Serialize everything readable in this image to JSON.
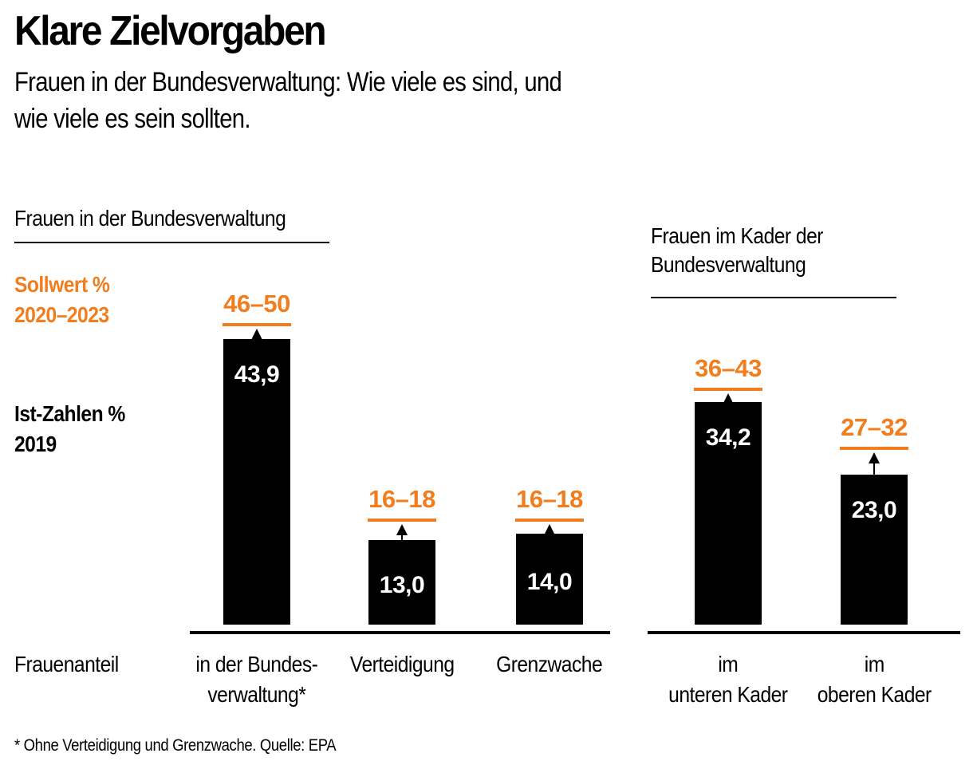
{
  "title": "Klare Zielvorgaben",
  "subtitle": "Frauen in der Bundesverwaltung: Wie viele es sind, und wie viele es sein sollten.",
  "legend": {
    "target": [
      "Sollwert %",
      "2020–2023"
    ],
    "actual": [
      "Ist-Zahlen %",
      "2019"
    ]
  },
  "x_axis_label": "Frauenanteil",
  "footnote": "* Ohne Verteidigung und Grenzwache. Quelle: EPA",
  "colors": {
    "target": "#f07d1e",
    "bar": "#000000",
    "bar_text": "#ffffff"
  },
  "chart_data": [
    {
      "type": "bar",
      "title": "Frauen in der Bundesverwaltung",
      "categories": [
        "in der Bundes-\nverwaltung*",
        "Verteidigung",
        "Grenzwache"
      ],
      "series": [
        {
          "name": "Ist-Zahlen % 2019",
          "values": [
            43.9,
            13.0,
            14.0
          ],
          "labels": [
            "43,9",
            "13,0",
            "14,0"
          ]
        }
      ],
      "targets": [
        {
          "name": "Sollwert % 2020–2023",
          "ranges": [
            [
              46,
              50
            ],
            [
              16,
              18
            ],
            [
              16,
              18
            ]
          ],
          "labels": [
            "46–50",
            "16–18",
            "16–18"
          ]
        }
      ],
      "ylim": [
        0,
        50
      ]
    },
    {
      "type": "bar",
      "title": "Frauen im Kader der Bundesverwaltung",
      "categories": [
        "im\nunteren Kader",
        "im\noberen Kader"
      ],
      "series": [
        {
          "name": "Ist-Zahlen % 2019",
          "values": [
            34.2,
            23.0
          ],
          "labels": [
            "34,2",
            "23,0"
          ]
        }
      ],
      "targets": [
        {
          "name": "Sollwert % 2020–2023",
          "ranges": [
            [
              36,
              43
            ],
            [
              27,
              32
            ]
          ],
          "labels": [
            "36–43",
            "27–32"
          ]
        }
      ],
      "ylim": [
        0,
        50
      ]
    }
  ]
}
